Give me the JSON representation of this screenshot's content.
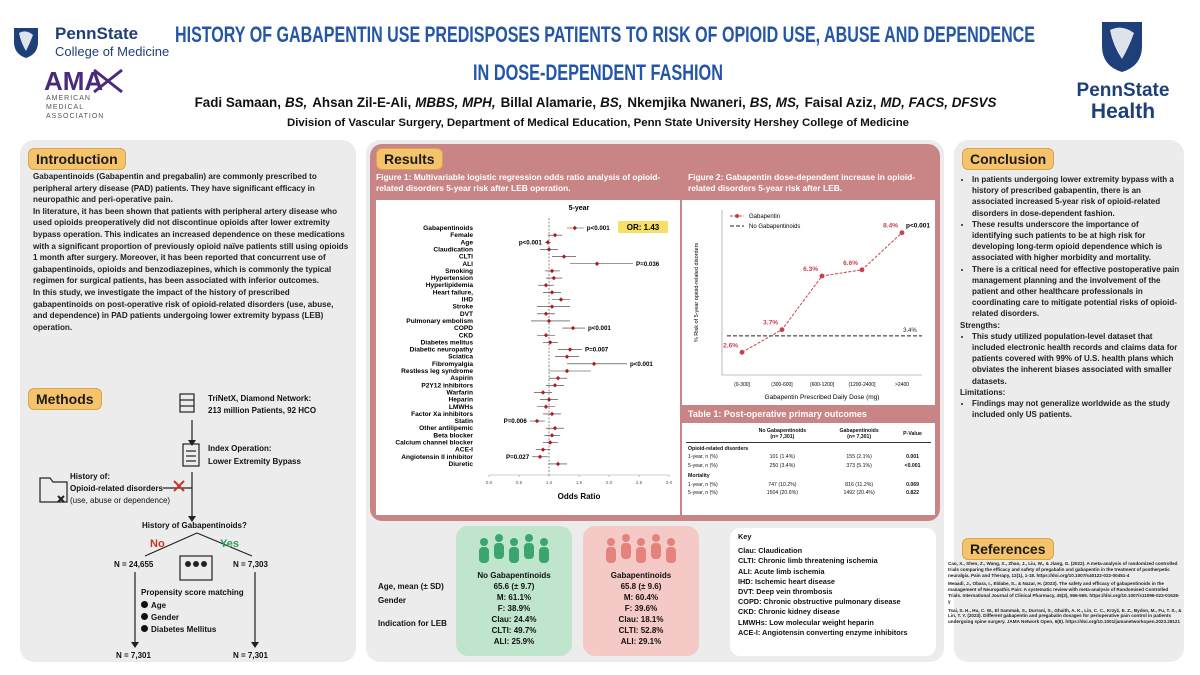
{
  "header": {
    "title_lines": [
      "HISTORY OF GABAPENTIN USE PREDISPOSES PATIENTS TO RISK OF OPIOID USE, ABUSE AND DEPENDENCE",
      "IN DOSE-DEPENDENT FASHION"
    ],
    "authors": [
      {
        "name": "Fadi Samaan,",
        "degrees": "BS,"
      },
      {
        "name": "Ahsan Zil-E-Ali,",
        "degrees": "MBBS, MPH,"
      },
      {
        "name": "Billal Alamarie,",
        "degrees": "BS,"
      },
      {
        "name": "Nkemjika Nwaneri,",
        "degrees": "BS, MS,"
      },
      {
        "name": "Faisal Aziz,",
        "degrees": "MD, FACS, DFSVS"
      }
    ],
    "affiliation": "Division of Vascular Surgery, Department of Medical Education, Penn State University Hershey College of Medicine"
  },
  "logos": {
    "psu_com": [
      "PennState",
      "College of Medicine"
    ],
    "ama": [
      "AMA",
      "AMERICAN",
      "MEDICAL",
      "ASSOCIATION"
    ],
    "psh": [
      "PennState",
      "Health"
    ]
  },
  "introduction": {
    "heading": "Introduction",
    "paragraphs": [
      "Gabapentinoids (Gabapentin and pregabalin) are commonly prescribed to peripheral artery disease (PAD) patients. They have significant efficacy in neuropathic and peri-operative pain.",
      "In literature, it has been shown that patients with peripheral artery disease who used opioids preoperatively did not discontinue opioids after lower extremity bypass operation. This indicates an increased dependence on these medications with a significant proportion of previously opioid naïve patients still using opioids 1 month after surgery. Moreover, it has been reported that concurrent use of gabapentinoids, opioids and benzodiazepines, which is commonly the typical regimen for surgical patients, has been associated with inferior outcomes.",
      "In this study, we investigate the impact of the history of prescribed gabapentinoids on post-operative risk of opioid-related disorders (use, abuse, and dependence) in PAD patients undergoing lower extremity bypass (LEB) operation."
    ]
  },
  "methods": {
    "heading": "Methods",
    "database": [
      "TriNetX, Diamond Network:",
      "213 million Patients, 92 HCO"
    ],
    "index_operation": [
      "Index Operation:",
      "Lower Extremity Bypass"
    ],
    "exclusion": [
      "History of:",
      "Opioid-related disorders",
      "(use, abuse or dependence)"
    ],
    "question": "History of Gabapentinoids?",
    "no": "No",
    "yes": "Yes",
    "n_no": "N = 24,655",
    "n_yes": "N = 7,303",
    "matching": "Propensity score matching",
    "matching_items": [
      "Age",
      "Gender",
      "Diabetes Mellitus"
    ],
    "n_matched": [
      "N = 7,301",
      "N = 7,301"
    ]
  },
  "results": {
    "heading": "Results",
    "figure1": {
      "type": "forest",
      "caption": "Figure 1: Multivariable logistic regression odds ratio analysis of opioid-related disorders 5-year risk after LEB operation.",
      "header": "5-year",
      "categories": [
        "Gabapentinoids",
        "Female",
        "Age",
        "Claudication",
        "CLTI",
        "ALI",
        "Smoking",
        "Hypertension",
        "Hyperlipidemia",
        "Heart failure,",
        "IHD",
        "Stroke",
        "DVT",
        "Pulmonary embolism",
        "COPD",
        "CKD",
        "Diabetes melitus",
        "Diabetic neuropathy",
        "Sciatica",
        "Fibromyalgia",
        "Restless leg syndrome",
        "Aspirin",
        "P2Y12 inhibitors",
        "Warfarin",
        "Heparin",
        "LMWHs",
        "Factor Xa inhibitors",
        "Statin",
        "Other antilipemic",
        "Beta blocker",
        "Calcium channel blocker",
        "ACE-I",
        "Angiotensin II inhibitor",
        "Diuretic"
      ],
      "values": [
        1.43,
        1.1,
        0.98,
        1.0,
        1.25,
        1.8,
        1.05,
        1.08,
        0.95,
        1.05,
        1.2,
        1.05,
        0.95,
        1.0,
        1.4,
        0.95,
        1.02,
        1.35,
        1.3,
        1.75,
        1.3,
        1.15,
        1.1,
        0.9,
        1.0,
        0.95,
        1.05,
        0.8,
        1.1,
        1.05,
        1.02,
        0.9,
        0.85,
        1.15
      ],
      "ci_low": [
        1.3,
        0.98,
        0.93,
        0.85,
        1.05,
        1.35,
        0.93,
        0.95,
        0.82,
        0.9,
        1.05,
        0.8,
        0.8,
        0.7,
        1.22,
        0.8,
        0.9,
        1.15,
        1.1,
        1.3,
        1.0,
        1.0,
        0.95,
        0.75,
        0.85,
        0.8,
        0.9,
        0.68,
        0.95,
        0.92,
        0.9,
        0.78,
        0.72,
        1.0
      ],
      "ci_high": [
        1.58,
        1.22,
        1.03,
        1.15,
        1.45,
        2.4,
        1.18,
        1.22,
        1.08,
        1.2,
        1.35,
        1.35,
        1.1,
        1.35,
        1.6,
        1.1,
        1.15,
        1.55,
        1.5,
        2.3,
        1.7,
        1.3,
        1.25,
        1.05,
        1.15,
        1.1,
        1.2,
        0.93,
        1.25,
        1.18,
        1.15,
        1.02,
        0.98,
        1.3
      ],
      "p_labels": [
        "p<0.001",
        null,
        "p<0.001",
        null,
        null,
        "P=0.036",
        null,
        null,
        null,
        null,
        null,
        null,
        null,
        null,
        "p<0.001",
        null,
        null,
        "P=0.007",
        null,
        "p<0.001",
        null,
        null,
        null,
        null,
        null,
        null,
        null,
        "P=0.006",
        null,
        null,
        null,
        null,
        "P=0.027",
        null
      ],
      "or_annotation": "OR: 1.43",
      "xlabel": "Odds Ratio",
      "xlim": [
        0,
        3
      ],
      "xticks": [
        {
          "value": 0,
          "label": "0.0"
        },
        0.5,
        {
          "value": 1,
          "label": "1.0"
        },
        1.5,
        {
          "value": 2,
          "label": "2.0"
        },
        2.5,
        {
          "value": 3,
          "label": "3.0"
        }
      ],
      "reference_value": 1,
      "color": "#b0191e"
    },
    "figure2": {
      "type": "line",
      "caption": "Figure 2: Gabapentin dose-dependent increase in opioid-related disorders 5-year risk after LEB.",
      "categories": [
        "(0-300]",
        "(300-600]",
        "(600-1200]",
        "(1200-2400]",
        ">2400"
      ],
      "series": [
        {
          "name": "Gabapentin",
          "color": "#c9404a",
          "values": [
            2.6,
            3.7,
            6.3,
            6.6,
            8.4
          ],
          "value_labels": [
            "2.6%",
            "3.7%",
            "6.3%",
            "6.6%",
            "8.4%"
          ]
        }
      ],
      "reference": {
        "name": "No Gabapentinoids",
        "value": 3.4,
        "value_label": "3.4%",
        "color": "#222222"
      },
      "annotation": "p<0.001",
      "xlabel": "Gabapentin Prescribed Daily Dose (mg)",
      "ylabel": "% Risk of 5-year opioid-related disorders",
      "ylim": [
        1.5,
        9.5
      ],
      "legend": "upper-left"
    },
    "table1": {
      "caption": "Table 1: Post-operative primary outcomes",
      "columns": [
        [
          "No Gabapentinoids",
          "(n= 7,301)"
        ],
        [
          "Gabapentinoids",
          "(n= 7,301)"
        ],
        [
          "P-Value"
        ]
      ],
      "sections": [
        {
          "title": "Opioid-related disorders",
          "rows": [
            [
              "1-year, n (%)",
              "101 (1.4%)",
              "155 (2.1%)",
              "0.001"
            ],
            [
              "5-year, n (%)",
              "250 (3.4%)",
              "373 (5.1%)",
              "<0.001"
            ]
          ]
        },
        {
          "title": "Mortality",
          "rows": [
            [
              "1-year, n (%)",
              "747 (10.2%)",
              "816 (11.2%)",
              "0.069"
            ],
            [
              "5-year, n (%)",
              "1504 (20.6%)",
              "1492 (20.4%)",
              "0.822"
            ]
          ]
        }
      ]
    },
    "demographics": {
      "row_labels": [
        "Age, mean (± SD)",
        "Gender",
        "Indication for LEB"
      ],
      "groups": [
        {
          "title": "No Gabapentinoids",
          "age": "65.6 (± 9.7)",
          "gender": [
            "M: 61.1%",
            "F: 38.9%"
          ],
          "indication": [
            "Clau: 24.4%",
            "CLTI: 49.7%",
            "ALI: 25.9%"
          ]
        },
        {
          "title": "Gabapentinoids",
          "age": "65.8 (± 9.6)",
          "gender": [
            "M: 60.4%",
            "F: 39.6%"
          ],
          "indication": [
            "Clau: 18.1%",
            "CLTI:  52.8%",
            "ALI: 29.1%"
          ]
        }
      ]
    },
    "key": {
      "title": "Key",
      "items": [
        "Clau: Claudication",
        "CLTI: Chronic limb threatening ischemia",
        "ALI: Acute limb ischemia",
        "IHD: Ischemic heart disease",
        "DVT: Deep vein thrombosis",
        "COPD: Chronic obstructive pulmonary disease",
        "CKD: Chronic kidney disease",
        "LMWHs: Low molecular weight heparin",
        "ACE-I: Angiotensin converting enzyme inhibitors"
      ]
    }
  },
  "conclusion": {
    "heading": "Conclusion",
    "bullets": [
      "In patients undergoing lower extremity bypass with a history of prescribed gabapentin, there is an associated increased 5-year risk of opioid-related disorders in dose-dependent fashion.",
      "These results underscore the importance of identifying such patients to be at high risk for developing long-term opioid dependence which is associated with higher morbidity and mortality.",
      "There is a critical need for effective postoperative pain management planning and the involvement of the patient and other healthcare professionals in coordinating care to mitigate potential risks of opioid-related disorders."
    ],
    "strengths_heading": "Strengths:",
    "strengths": [
      "This study utilized population-level dataset that included electronic health records and claims data for patients covered with 99% of U.S. health plans which obviates the inherent biases associated with smaller datasets."
    ],
    "limitations_heading": "Limitations:",
    "limitations": [
      "Findings may not generalize worldwide as the study included only US patients."
    ]
  },
  "references": {
    "heading": "References",
    "items": [
      "Cao, X., Shen, Z., Wang, X., Zhao, J., Liu, W., & Jiang, G. (2022). A meta-analysis of randomized controlled trials comparing the efficacy and safety of pregabalin and gabapentin in the treatment of postherpetic neuralgia. Pain and Therapy, 12(1), 1-18. https://doi.org/10.1007/s40122-022-00451-4",
      "Meaadi, J., Obara, I., Eldabe, S., & Nazar, H. (2023). The safety and efficacy of gabapentinoids in the management of Neuropathic Pain: A systematic review with meta-analysis of Randomised Controlled Trials. International Journal of Clinical Pharmacy, 45(3), 556-565. https://doi.org/10.1007/s11096-022-01528-y",
      "Tsai, S. H., Hu, C. W., El Sammak, S., Durrani, S., Ghaith, A. K., Lin, C. C., Krzyż, E. Z., Bydon, M., Fu, T. S., & Lin, T. Y. (2023). Different gabapentin and pregabalin dosages for perioperative pain control in patients undergoing spine surgery. JAMA Network Open, 6(8). https://doi.org/10.1001/jamanetworkopen.2023.28121"
    ]
  }
}
